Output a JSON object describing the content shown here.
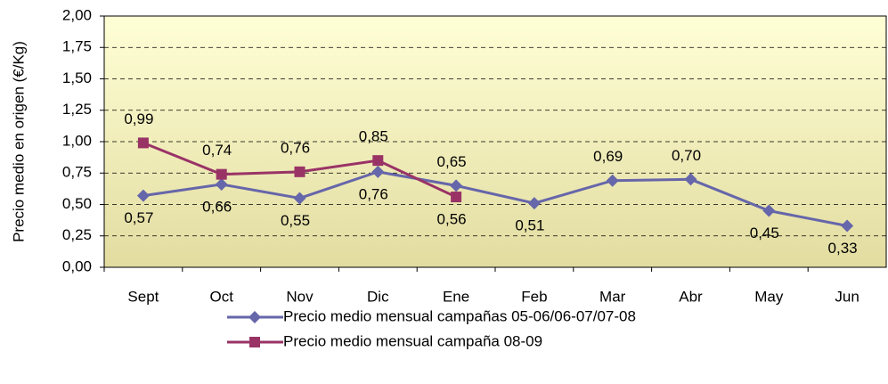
{
  "chart_data": {
    "type": "line",
    "y_label": "Precio medio en origen  (€/Kg)",
    "categories": [
      "Sept",
      "Oct",
      "Nov",
      "Dic",
      "Ene",
      "Feb",
      "Mar",
      "Abr",
      "May",
      "Jun"
    ],
    "series": [
      {
        "name": "Precio medio mensual campañas 05-06/06-07/07-08",
        "color": "#6666aa",
        "marker": "diamond",
        "values": [
          0.57,
          0.66,
          0.55,
          0.76,
          0.65,
          0.51,
          0.69,
          0.7,
          0.45,
          0.33
        ],
        "value_labels": [
          "0,57",
          "0,66",
          "0,55",
          "0,76",
          "0,65",
          "0,51",
          "0,69",
          "0,70",
          "0,45",
          "0,33"
        ]
      },
      {
        "name": "Precio medio mensual campaña 08-09",
        "color": "#993366",
        "marker": "square",
        "values": [
          0.99,
          0.74,
          0.76,
          0.85,
          0.56,
          null,
          null,
          null,
          null,
          null
        ],
        "value_labels": [
          "0,99",
          "0,74",
          "0,76",
          "0,85",
          "0,56",
          null,
          null,
          null,
          null,
          null
        ]
      }
    ],
    "ylim": [
      0,
      2
    ],
    "yticks": [
      {
        "value": 0,
        "label": "0,00"
      },
      {
        "value": 0.25,
        "label": "0,25"
      },
      {
        "value": 0.5,
        "label": "0,50"
      },
      {
        "value": 0.75,
        "label": "0,75"
      },
      {
        "value": 1,
        "label": "1,00"
      },
      {
        "value": 1.25,
        "label": "1,25"
      },
      {
        "value": 1.5,
        "label": "1,50"
      },
      {
        "value": 1.75,
        "label": "1,75"
      },
      {
        "value": 2,
        "label": "2,00"
      }
    ],
    "grid": true,
    "legend": "bottom"
  }
}
